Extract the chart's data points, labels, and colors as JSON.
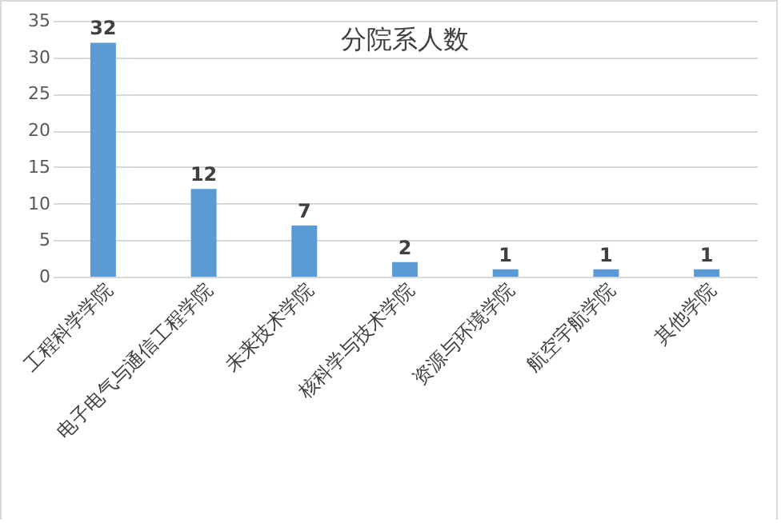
{
  "chart_data": {
    "type": "bar",
    "title": "分院系人数",
    "categories": [
      "工程科学学院",
      "电子电气与通信工程学院",
      "未来技术学院",
      "核科学与技术学院",
      "资源与环境学院",
      "航空宇航学院",
      "其他学院"
    ],
    "values": [
      32,
      12,
      7,
      2,
      1,
      1,
      1
    ],
    "color": "#5b9bd5",
    "ylim": [
      0,
      35
    ],
    "yticks": [
      0,
      5,
      10,
      15,
      20,
      25,
      30,
      35
    ],
    "grid": "y",
    "data_labels": true
  }
}
